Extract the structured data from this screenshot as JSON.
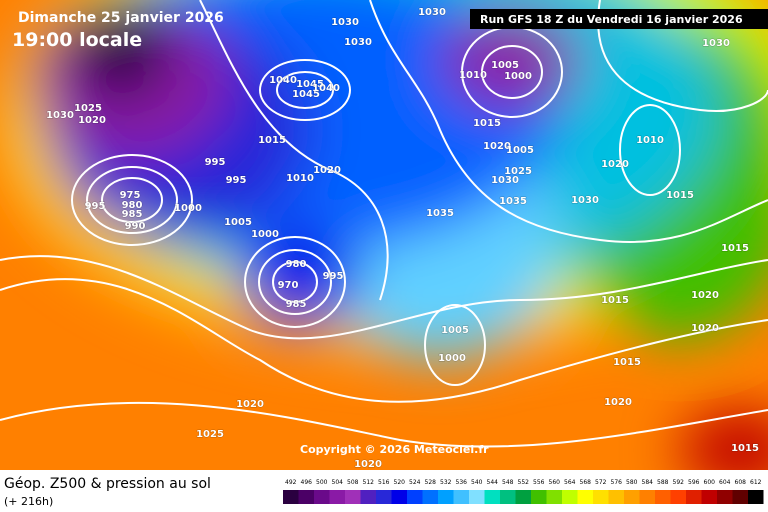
{
  "header": {
    "date": "Dimanche 25 janvier 2026",
    "time": "19:00 locale",
    "run": "Run GFS 18 Z du Vendredi 16 janvier 2026"
  },
  "copyright": "Copyright © 2026 Meteociel.fr",
  "footer": {
    "title": "Géop. Z500 & pression au sol",
    "lead": "(+ 216h)"
  },
  "isobar_labels": [
    "1030",
    "1030",
    "1030",
    "1030",
    "1025",
    "1020",
    "1005",
    "1000",
    "1010",
    "1040",
    "1045",
    "1045",
    "1040",
    "1015",
    "1015",
    "1020",
    "1005",
    "1020",
    "1010",
    "995",
    "995",
    "1000",
    "1005",
    "1000",
    "975",
    "980",
    "985",
    "990",
    "995",
    "980",
    "995",
    "970",
    "985",
    "1025",
    "1030",
    "1035",
    "1035",
    "1030",
    "1020",
    "1010",
    "1015",
    "1030",
    "1015",
    "1020",
    "1020",
    "1015",
    "1015",
    "1005",
    "1000",
    "1020",
    "1025",
    "1020",
    "1015",
    "1020"
  ],
  "colorbar": {
    "values": [
      492,
      496,
      500,
      504,
      508,
      512,
      516,
      520,
      524,
      528,
      532,
      536,
      540,
      544,
      548,
      552,
      556,
      560,
      564,
      568,
      572,
      576,
      580,
      584,
      588,
      592,
      596,
      600,
      604,
      608,
      612
    ],
    "colors": [
      "#2a0040",
      "#4b0066",
      "#6a0a8a",
      "#8a1aa6",
      "#a030b8",
      "#5020c0",
      "#2828d8",
      "#0000e8",
      "#0040ff",
      "#0070ff",
      "#00a0ff",
      "#40c0ff",
      "#80e0ff",
      "#00e0c0",
      "#00c080",
      "#00a040",
      "#40c000",
      "#80e000",
      "#c0ff00",
      "#ffff00",
      "#ffe000",
      "#ffc000",
      "#ffa000",
      "#ff8000",
      "#ff6000",
      "#ff4000",
      "#e02000",
      "#c00000",
      "#900000",
      "#600000",
      "#000000"
    ]
  }
}
